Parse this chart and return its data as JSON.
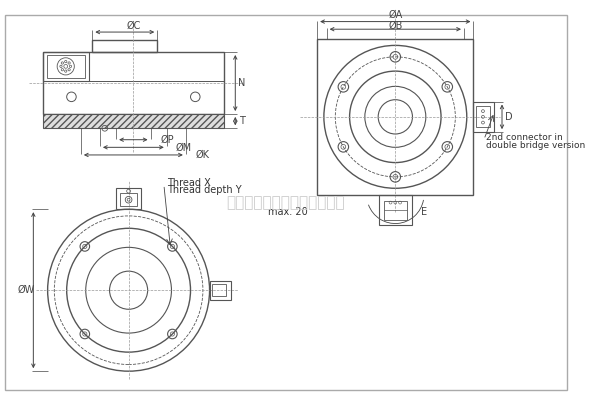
{
  "bg_color": "#ffffff",
  "border_color": "#aaaaaa",
  "line_color": "#555555",
  "dim_color": "#444444",
  "center_line_color": "#999999",
  "hatch_color": "#888888",
  "watermark_text": "广州众鑫自动化科技有限公司",
  "watermark_color": "#cccccc",
  "labels": {
    "top_left": {
      "C": "ØC",
      "N": "N",
      "T": "T",
      "P": "ØP",
      "M": "ØM",
      "K": "ØK"
    },
    "top_right": {
      "A": "ØA",
      "B": "ØB",
      "D": "D",
      "E": "E",
      "max20": "max. 20",
      "connector_line1": "2nd connector in",
      "connector_line2": "double bridge version"
    },
    "bottom_left": {
      "W": "ØW",
      "threadX": "Thread X",
      "threadY": "Thread depth Y"
    }
  }
}
